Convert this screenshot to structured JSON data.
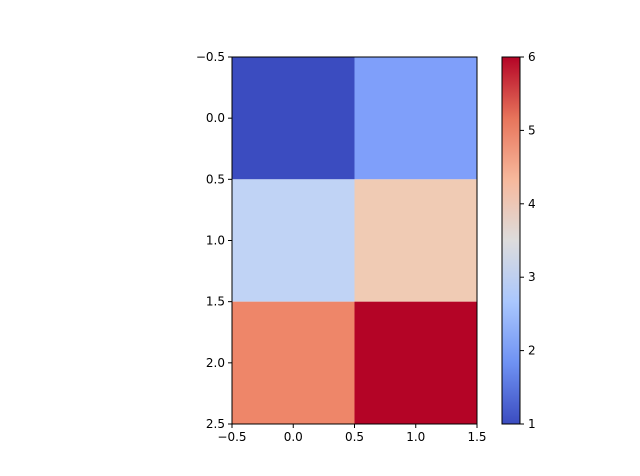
{
  "chart_data": {
    "type": "heatmap",
    "title": "",
    "xlabel": "",
    "ylabel": "",
    "values": [
      [
        1,
        2
      ],
      [
        3,
        4
      ],
      [
        5,
        6
      ]
    ],
    "colormap": "coolwarm",
    "cell_colors": [
      [
        "#3b4cc0",
        "#7f9ffa"
      ],
      [
        "#c0d3f5",
        "#f0cbb4"
      ],
      [
        "#ee8669",
        "#b40426"
      ]
    ],
    "xlim": [
      -0.5,
      1.5
    ],
    "ylim": [
      2.5,
      -0.5
    ],
    "x_ticks": [
      -0.5,
      0.0,
      0.5,
      1.0,
      1.5
    ],
    "x_tick_labels": [
      "−0.5",
      "0.0",
      "0.5",
      "1.0",
      "1.5"
    ],
    "y_ticks": [
      -0.5,
      0.0,
      0.5,
      1.0,
      1.5,
      2.0,
      2.5
    ],
    "y_tick_labels": [
      "−0.5",
      "0.0",
      "0.5",
      "1.0",
      "1.5",
      "2.0",
      "2.5"
    ],
    "grid": false,
    "colorbar": {
      "range": [
        1,
        6
      ],
      "ticks": [
        1,
        2,
        3,
        4,
        5,
        6
      ],
      "tick_labels": [
        "1",
        "2",
        "3",
        "4",
        "5",
        "6"
      ],
      "gradient_stops": [
        "#3b4cc0",
        "#6f92f3",
        "#aac7fd",
        "#dddcdc",
        "#f7b89c",
        "#e7745b",
        "#b40426"
      ]
    }
  }
}
